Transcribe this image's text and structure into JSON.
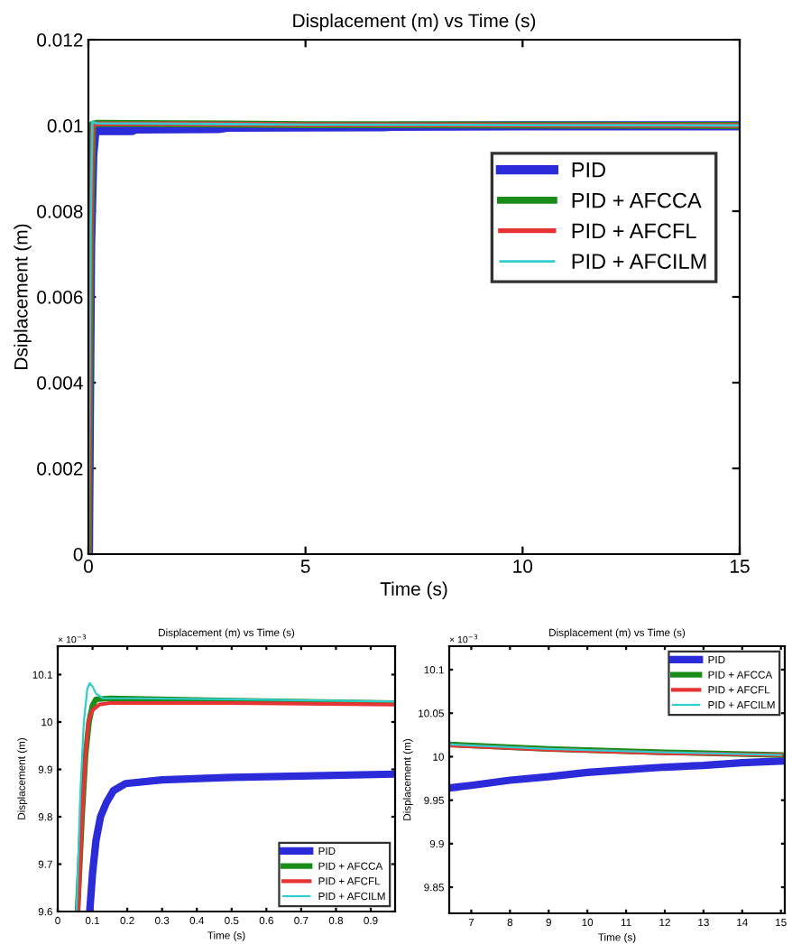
{
  "chart_data": [
    {
      "type": "line",
      "title": "Displacement (m) vs Time (s)",
      "xlabel": "Time (s)",
      "ylabel": "Dsiplacement (m)",
      "xlim": [
        0,
        15
      ],
      "ylim": [
        0,
        0.012
      ],
      "xticks": [
        0,
        5,
        10,
        15
      ],
      "yticks": [
        0,
        0.002,
        0.004,
        0.006,
        0.008,
        0.01,
        0.012
      ],
      "legend": "top right",
      "grid": false,
      "series": [
        {
          "name": "PID",
          "color": "#2b2bd9",
          "x": [
            0,
            0.05,
            0.1,
            0.15,
            0.5,
            1.0,
            1.1,
            3.0,
            3.2,
            6.8,
            7,
            10,
            15
          ],
          "values": [
            0,
            0.0072,
            0.0093,
            0.00988,
            0.00988,
            0.00988,
            0.00992,
            0.00993,
            0.00996,
            0.00997,
            0.00998,
            0.00999,
            0.00999
          ]
        },
        {
          "name": "PID + AFCCA",
          "color": "#1a8c1a",
          "x": [
            0,
            0.05,
            0.1,
            0.2,
            2,
            5,
            10,
            15
          ],
          "values": [
            0,
            0.0075,
            0.01003,
            0.01005,
            0.01004,
            0.01002,
            0.01001,
            0.01
          ]
        },
        {
          "name": "PID + AFCFL",
          "color": "#e63333",
          "x": [
            0,
            0.05,
            0.1,
            0.2,
            2,
            5,
            10,
            15
          ],
          "values": [
            0,
            0.0072,
            0.01,
            0.01004,
            0.01004,
            0.01002,
            0.01001,
            0.01
          ]
        },
        {
          "name": "PID + AFCILM",
          "color": "#33cccc",
          "x": [
            0,
            0.05,
            0.09,
            0.2,
            2,
            5,
            10,
            15
          ],
          "values": [
            0,
            0.0076,
            0.01008,
            0.01005,
            0.01004,
            0.01002,
            0.01001,
            0.01
          ]
        }
      ]
    },
    {
      "type": "line",
      "title": "Displacement (m) vs Time (s)",
      "xlabel": "Time (s)",
      "ylabel": "Displacement (m)",
      "annotations": [
        "× 10$^{−3}$"
      ],
      "xlim": [
        0,
        0.97
      ],
      "ylim": [
        9.6,
        10.16
      ],
      "xticks": [
        0,
        0.1,
        0.2,
        0.3,
        0.4,
        0.5,
        0.6,
        0.7,
        0.8,
        0.9
      ],
      "yticks": [
        9.6,
        9.7,
        9.8,
        9.9,
        10,
        10.1
      ],
      "legend": "bottom right",
      "grid": false,
      "series": [
        {
          "name": "PID",
          "color": "#2b2bd9",
          "x": [
            0.092,
            0.1,
            0.11,
            0.123,
            0.14,
            0.16,
            0.195,
            0.3,
            0.5,
            0.7,
            0.97
          ],
          "values": [
            9.6,
            9.68,
            9.75,
            9.8,
            9.83,
            9.855,
            9.87,
            9.878,
            9.883,
            9.886,
            9.89
          ]
        },
        {
          "name": "PID + AFCCA",
          "color": "#1a8c1a",
          "x": [
            0.057,
            0.07,
            0.08,
            0.09,
            0.1,
            0.11,
            0.15,
            0.5,
            0.97
          ],
          "values": [
            9.6,
            9.8,
            9.93,
            10.0,
            10.035,
            10.048,
            10.05,
            10.045,
            10.04
          ]
        },
        {
          "name": "PID + AFCFL",
          "color": "#e63333",
          "x": [
            0.059,
            0.07,
            0.08,
            0.088,
            0.1,
            0.12,
            0.15,
            0.5,
            0.97
          ],
          "values": [
            9.6,
            9.8,
            9.93,
            10.0,
            10.025,
            10.037,
            10.04,
            10.04,
            10.037
          ]
        },
        {
          "name": "PID + AFCILM",
          "color": "#33cccc",
          "x": [
            0.054,
            0.065,
            0.075,
            0.085,
            0.092,
            0.1,
            0.11,
            0.13,
            0.2,
            0.5,
            0.97
          ],
          "values": [
            9.6,
            9.85,
            10.0,
            10.07,
            10.082,
            10.075,
            10.06,
            10.05,
            10.05,
            10.048,
            10.043
          ]
        }
      ]
    },
    {
      "type": "line",
      "title": "Displacement (m) vs Time (s)",
      "xlabel": "Time (s)",
      "ylabel": "Displacement (m)",
      "annotations": [
        "× 10$^{−3}$"
      ],
      "xlim": [
        6.43,
        15.1
      ],
      "ylim": [
        9.82,
        10.127
      ],
      "xticks": [
        7,
        8,
        9,
        10,
        11,
        12,
        13,
        14,
        15
      ],
      "yticks": [
        9.85,
        9.9,
        9.95,
        10,
        10.05,
        10.1
      ],
      "legend": "top right",
      "grid": false,
      "series": [
        {
          "name": "PID",
          "color": "#2b2bd9",
          "x": [
            6.43,
            7,
            8,
            9,
            10,
            11,
            12,
            13,
            14,
            15
          ],
          "values": [
            9.964,
            9.967,
            9.973,
            9.977,
            9.982,
            9.985,
            9.988,
            9.99,
            9.993,
            9.995
          ]
        },
        {
          "name": "PID + AFCCA",
          "color": "#1a8c1a",
          "x": [
            6.43,
            9,
            12,
            15
          ],
          "values": [
            10.014,
            10.009,
            10.005,
            10.002
          ]
        },
        {
          "name": "PID + AFCFL",
          "color": "#e63333",
          "x": [
            6.43,
            9,
            12,
            15
          ],
          "values": [
            10.013,
            10.008,
            10.004,
            10.002
          ]
        },
        {
          "name": "PID + AFCILM",
          "color": "#33cccc",
          "x": [
            6.43,
            9,
            12,
            15
          ],
          "values": [
            10.014,
            10.009,
            10.005,
            10.002
          ]
        }
      ]
    }
  ]
}
